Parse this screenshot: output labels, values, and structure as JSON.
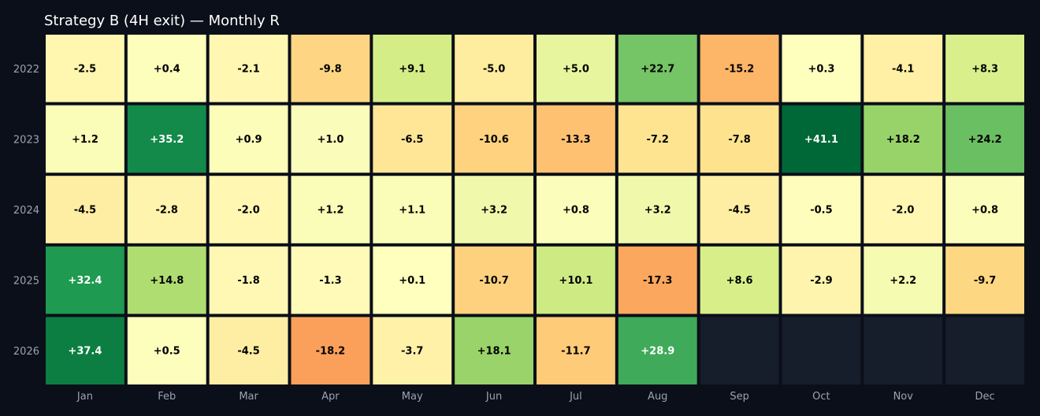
{
  "chart_data": {
    "type": "heatmap",
    "title": "Strategy B (4H exit) — Monthly R",
    "xlabel": "",
    "ylabel": "",
    "x": [
      "Jan",
      "Feb",
      "Mar",
      "Apr",
      "May",
      "Jun",
      "Jul",
      "Aug",
      "Sep",
      "Oct",
      "Nov",
      "Dec"
    ],
    "y": [
      "2022",
      "2023",
      "2024",
      "2025",
      "2026"
    ],
    "values": [
      [
        -2.5,
        0.4,
        -2.1,
        -9.8,
        9.1,
        -5.0,
        5.0,
        22.7,
        -15.2,
        0.3,
        -4.1,
        8.3
      ],
      [
        1.2,
        35.2,
        0.9,
        1.0,
        -6.5,
        -10.6,
        -13.3,
        -7.2,
        -7.8,
        41.1,
        18.2,
        24.2
      ],
      [
        -4.5,
        -2.8,
        -2.0,
        1.2,
        1.1,
        3.2,
        0.8,
        3.2,
        -4.5,
        -0.5,
        -2.0,
        0.8
      ],
      [
        32.4,
        14.8,
        -1.8,
        -1.3,
        0.1,
        -10.7,
        10.1,
        -17.3,
        8.6,
        -2.9,
        2.2,
        -9.7
      ],
      [
        37.4,
        0.5,
        -4.5,
        -18.2,
        -3.7,
        18.1,
        -11.7,
        28.9,
        null,
        null,
        null,
        null
      ]
    ],
    "labels": [
      [
        "-2.5",
        "+0.4",
        "-2.1",
        "-9.8",
        "+9.1",
        "-5.0",
        "+5.0",
        "+22.7",
        "-15.2",
        "+0.3",
        "-4.1",
        "+8.3"
      ],
      [
        "+1.2",
        "+35.2",
        "+0.9",
        "+1.0",
        "-6.5",
        "-10.6",
        "-13.3",
        "-7.2",
        "-7.8",
        "+41.1",
        "+18.2",
        "+24.2"
      ],
      [
        "-4.5",
        "-2.8",
        "-2.0",
        "+1.2",
        "+1.1",
        "+3.2",
        "+0.8",
        "+3.2",
        "-4.5",
        "-0.5",
        "-2.0",
        "+0.8"
      ],
      [
        "+32.4",
        "+14.8",
        "-1.8",
        "-1.3",
        "+0.1",
        "-10.7",
        "+10.1",
        "-17.3",
        "+8.6",
        "-2.9",
        "+2.2",
        "-9.7"
      ],
      [
        "+37.4",
        "+0.5",
        "-4.5",
        "-18.2",
        "-3.7",
        "+18.1",
        "-11.7",
        "+28.9",
        "",
        "",
        "",
        ""
      ]
    ],
    "colormap": "RdYlGn",
    "value_range": [
      -41.1,
      41.1
    ],
    "legend": "none",
    "grid": false
  },
  "colors": {
    "background": "#0b0f19",
    "empty_cell": "#161d2b",
    "cell_border": "#0b0f19",
    "title_text": "#ffffff",
    "axis_text": "#9aa3b2",
    "label_dark": "#000000",
    "label_light": "#ffffff"
  }
}
